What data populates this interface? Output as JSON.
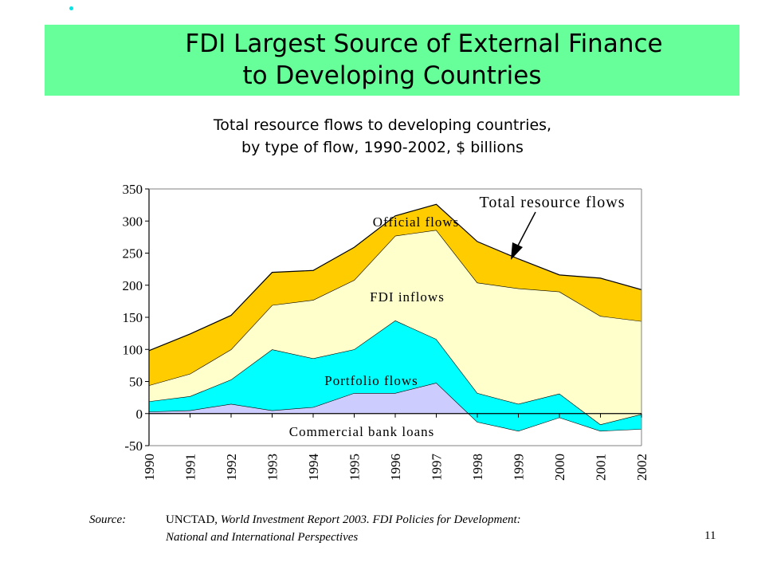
{
  "slide": {
    "title_line1": "FDI Largest Source of External Finance",
    "title_line2": "to Developing Countries",
    "subtitle_line1": "Total resource flows to developing countries,",
    "subtitle_line2": "by type of flow, 1990-2002, $ billions",
    "source_label": "Source:",
    "source_org": "UNCTAD,",
    "source_title": "World Investment Report 2003.  FDI Policies for Development:",
    "source_title2": "National and International Perspectives",
    "page_number": "11",
    "colors": {
      "title_bg": "#66ff99",
      "bullet": "#00e6e6",
      "commercial_bank_loans": "#ccccff",
      "portfolio_flows": "#00ffff",
      "fdi_inflows": "#ffffcc",
      "official_flows": "#ffcc00"
    }
  },
  "chart_data": {
    "type": "area",
    "title": "",
    "xlabel": "",
    "ylabel": "",
    "ylim": [
      -50,
      350
    ],
    "yticks": [
      "-50",
      "0",
      "50",
      "100",
      "150",
      "200",
      "250",
      "300",
      "350"
    ],
    "categories": [
      "1990",
      "1991",
      "1992",
      "1993",
      "1994",
      "1995",
      "1996",
      "1997",
      "1998",
      "1999",
      "2000",
      "2001",
      "2002"
    ],
    "stacked": true,
    "series": [
      {
        "name": "Commercial bank loans",
        "values": [
          3,
          5,
          15,
          5,
          10,
          32,
          32,
          48,
          -13,
          -27,
          -6,
          -27,
          -24
        ]
      },
      {
        "name": "Portfolio flows",
        "values": [
          16,
          22,
          38,
          95,
          76,
          68,
          113,
          68,
          45,
          42,
          37,
          10,
          23
        ]
      },
      {
        "name": "FDI inflows",
        "values": [
          25,
          35,
          47,
          69,
          91,
          108,
          132,
          170,
          172,
          180,
          159,
          169,
          145
        ]
      },
      {
        "name": "Official flows",
        "values": [
          54,
          62,
          53,
          51,
          46,
          51,
          31,
          40,
          64,
          46,
          26,
          59,
          49
        ]
      }
    ],
    "total_line": [
      98,
      124,
      153,
      220,
      223,
      259,
      308,
      326,
      268,
      241,
      216,
      211,
      193
    ],
    "annotations": [
      "Total resource flows",
      "Official flows",
      "FDI inflows",
      "Portfolio flows",
      "Commercial bank loans"
    ],
    "grid": false,
    "legend": "none"
  }
}
